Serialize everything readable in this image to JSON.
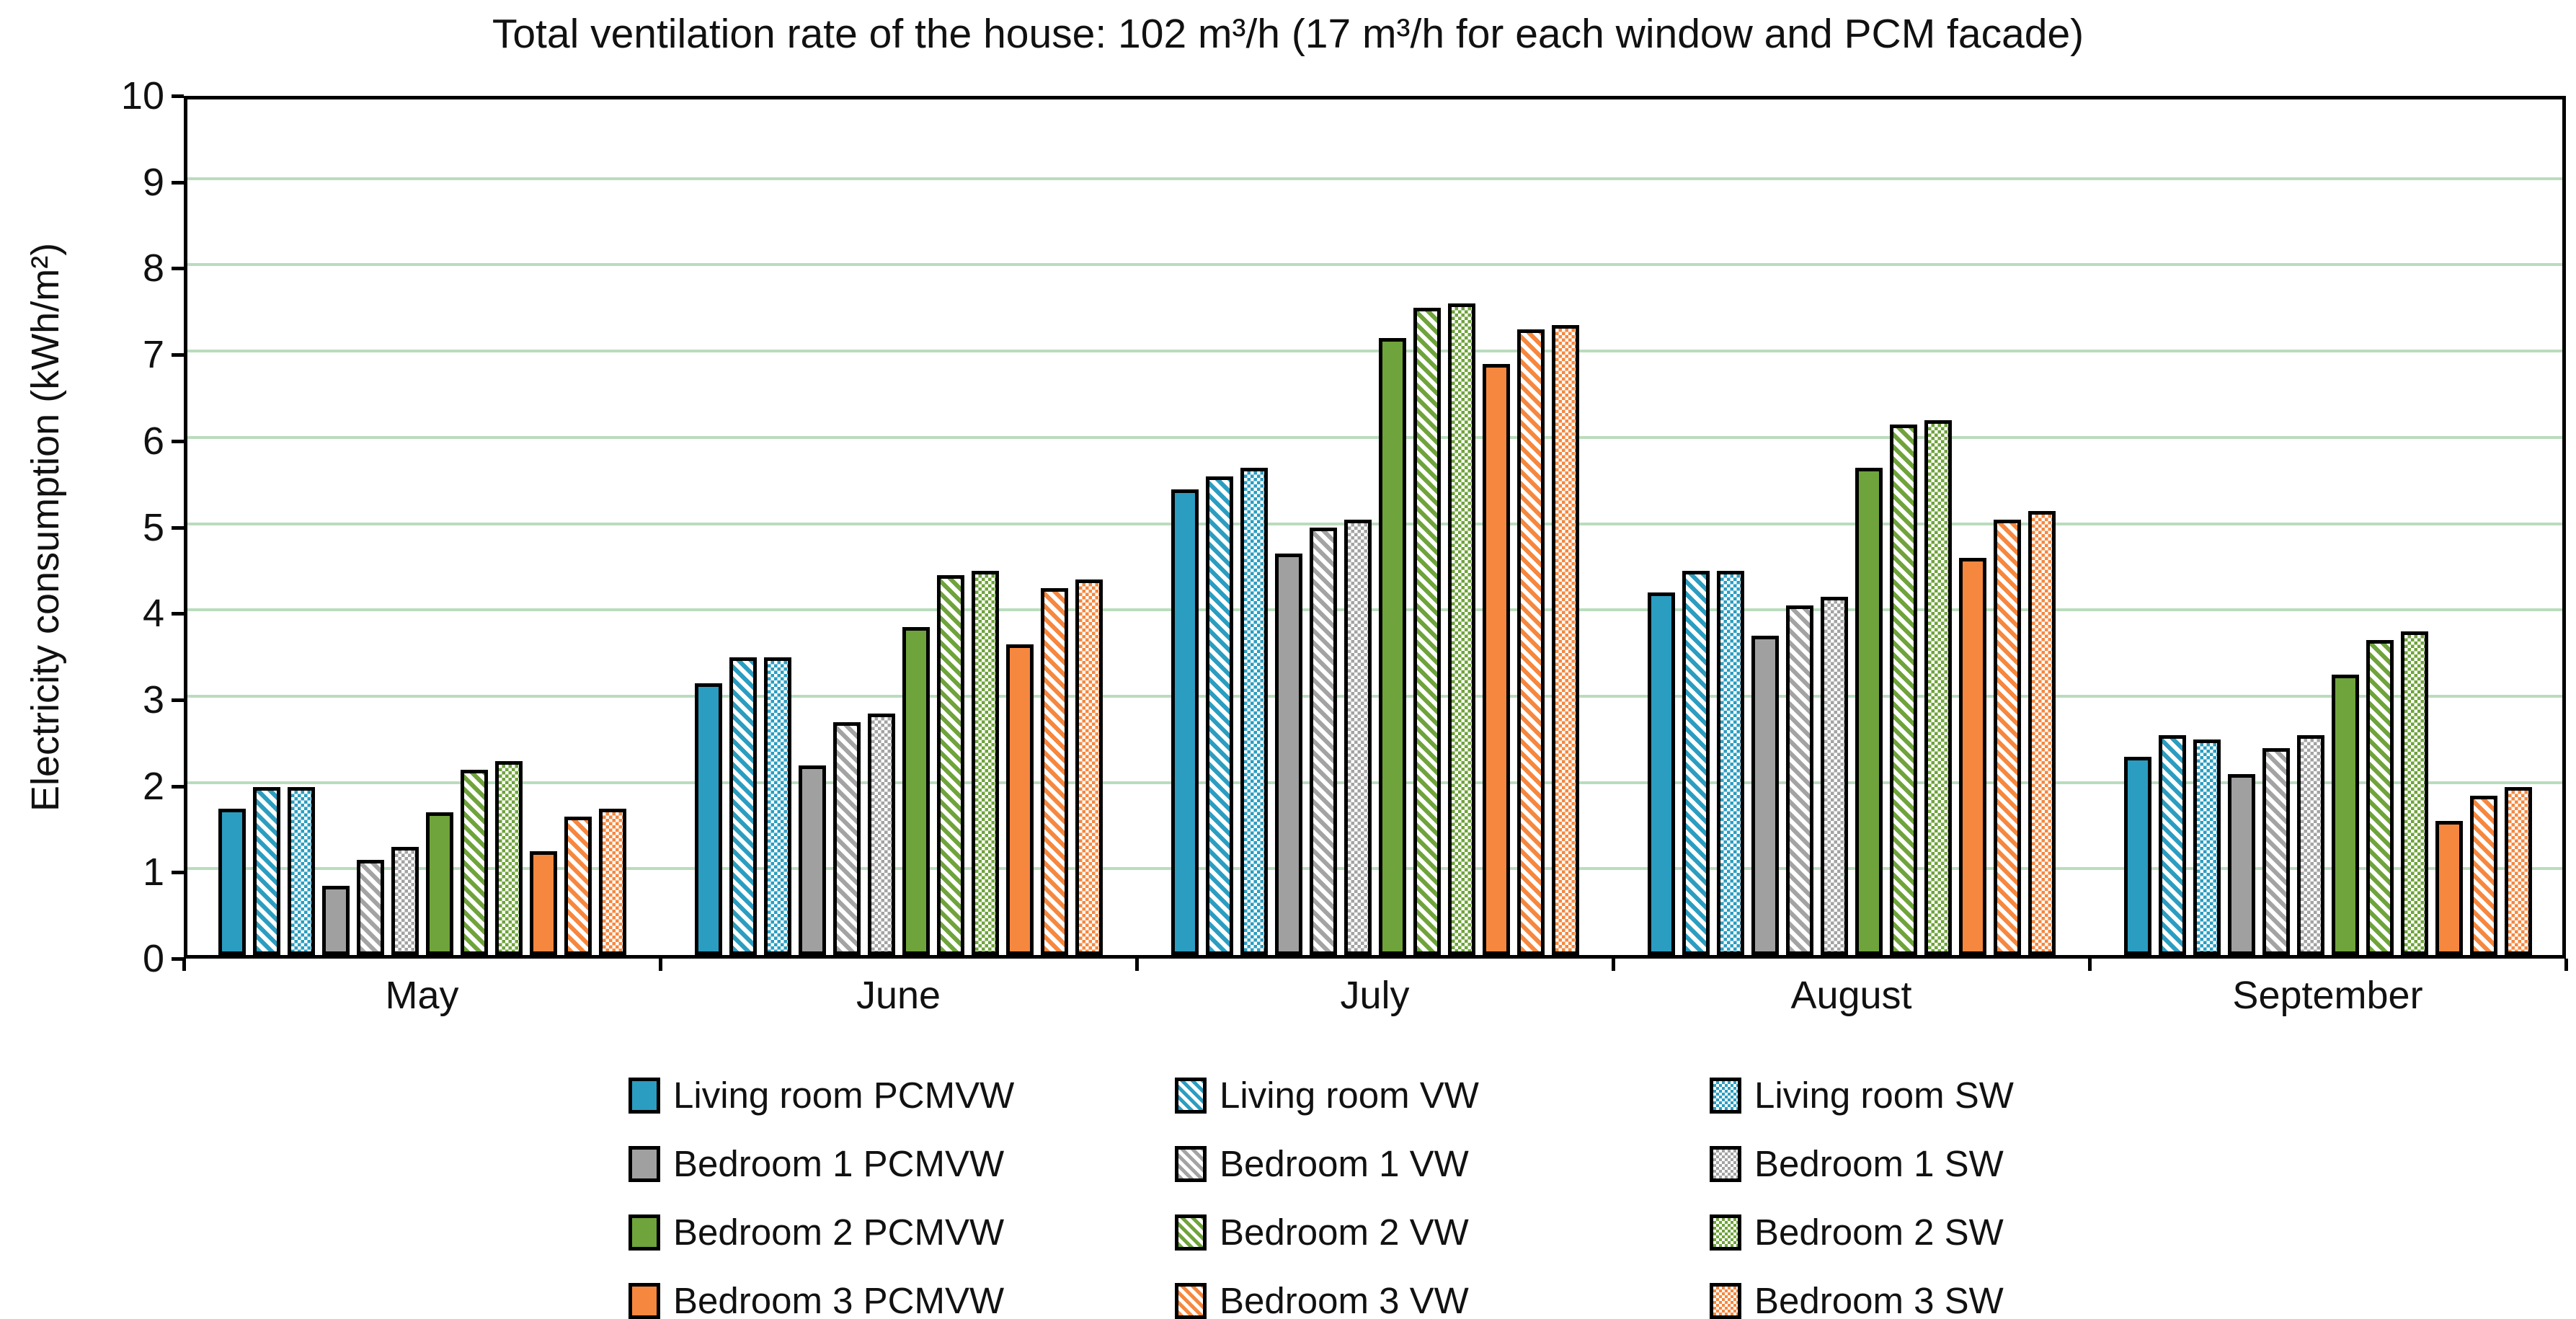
{
  "chart_data": {
    "type": "bar",
    "title": "Total ventilation rate of the house: 102 m³/h (17 m³/h for each window and PCM facade)",
    "xlabel": "",
    "ylabel": "Electricity consumption (kWh/m²)",
    "ylim": [
      0,
      10
    ],
    "yticks": [
      0,
      1,
      2,
      3,
      4,
      5,
      6,
      7,
      8,
      9,
      10
    ],
    "grid": "horizontal",
    "gridline_color": "#BADCBD",
    "legend_position": "bottom",
    "categories": [
      "May",
      "June",
      "July",
      "August",
      "September"
    ],
    "series": [
      {
        "name": "Living room PCMVW",
        "color": "#2B9DC0",
        "pattern": "solid",
        "values": [
          1.7,
          3.15,
          5.4,
          4.2,
          2.3
        ]
      },
      {
        "name": "Living room VW",
        "color": "#2B9DC0",
        "pattern": "diagonal",
        "values": [
          1.95,
          3.45,
          5.55,
          4.45,
          2.55
        ]
      },
      {
        "name": "Living room SW",
        "color": "#2B9DC0",
        "pattern": "check",
        "values": [
          1.95,
          3.45,
          5.65,
          4.45,
          2.5
        ]
      },
      {
        "name": "Bedroom 1 PCMVW",
        "color": "#A0A0A0",
        "pattern": "solid",
        "values": [
          0.8,
          2.2,
          4.65,
          3.7,
          2.1
        ]
      },
      {
        "name": "Bedroom 1 VW",
        "color": "#A3A3A3",
        "pattern": "diagonal",
        "values": [
          1.1,
          2.7,
          4.95,
          4.05,
          2.4
        ]
      },
      {
        "name": "Bedroom 1 SW",
        "color": "#A3A3A3",
        "pattern": "check",
        "values": [
          1.25,
          2.8,
          5.05,
          4.15,
          2.55
        ]
      },
      {
        "name": "Bedroom 2 PCMVW",
        "color": "#6FA33B",
        "pattern": "solid",
        "values": [
          1.65,
          3.8,
          7.15,
          5.65,
          3.25
        ]
      },
      {
        "name": "Bedroom 2 VW",
        "color": "#6FA33B",
        "pattern": "diagonal",
        "values": [
          2.15,
          4.4,
          7.5,
          6.15,
          3.65
        ]
      },
      {
        "name": "Bedroom 2 SW",
        "color": "#6FA33B",
        "pattern": "check",
        "values": [
          2.25,
          4.45,
          7.55,
          6.2,
          3.75
        ]
      },
      {
        "name": "Bedroom 3 PCMVW",
        "color": "#F6873E",
        "pattern": "solid",
        "values": [
          1.2,
          3.6,
          6.85,
          4.6,
          1.55
        ]
      },
      {
        "name": "Bedroom 3 VW",
        "color": "#F6873E",
        "pattern": "diagonal",
        "values": [
          1.6,
          4.25,
          7.25,
          5.05,
          1.85
        ]
      },
      {
        "name": "Bedroom 3 SW",
        "color": "#F6873E",
        "pattern": "check",
        "values": [
          1.7,
          4.35,
          7.3,
          5.15,
          1.95
        ]
      }
    ]
  },
  "colors": {
    "axis": "#000000",
    "gridline": "#BADCBD",
    "background": "#ffffff",
    "living_room": "#2B9DC0",
    "bedroom_1": "#A0A0A0",
    "bedroom_2": "#6FA33B",
    "bedroom_3": "#F6873E"
  }
}
